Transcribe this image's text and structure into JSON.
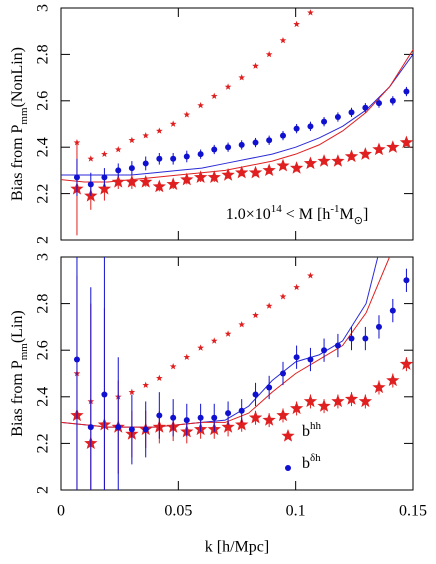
{
  "chart_data": [
    {
      "type": "scatter",
      "ylabel": [
        {
          "t": "Bias from P"
        },
        {
          "sub": "mm"
        },
        {
          "t": "(NonLin)"
        }
      ],
      "annotation": [
        {
          "t": "1.0×10"
        },
        {
          "sup": "14"
        },
        {
          "t": " < M [h"
        },
        {
          "sup": "-1"
        },
        {
          "t": "M"
        },
        {
          "sub": "⊙"
        },
        {
          "t": "]"
        }
      ],
      "xlim": [
        0,
        0.15
      ],
      "xticks": [
        0,
        0.05,
        0.1,
        0.15
      ],
      "xtick_labels": false,
      "ylim": [
        2,
        3
      ],
      "yticks": [
        2,
        2.2,
        2.4,
        2.6,
        2.8,
        3
      ],
      "x": [
        0.0068,
        0.0127,
        0.0185,
        0.0244,
        0.0302,
        0.0361,
        0.0419,
        0.0478,
        0.0536,
        0.0595,
        0.0653,
        0.0712,
        0.077,
        0.0829,
        0.0887,
        0.0946,
        0.1004,
        0.1063,
        0.1121,
        0.118,
        0.1238,
        0.1297,
        0.1355,
        0.1414,
        0.1472
      ],
      "series": [
        {
          "marker": "line",
          "color": "#2a2ad8",
          "x": [
            0,
            0.01,
            0.02,
            0.03,
            0.04,
            0.05,
            0.06,
            0.07,
            0.08,
            0.09,
            0.1,
            0.11,
            0.12,
            0.13,
            0.14,
            0.15
          ],
          "values": [
            2.28,
            2.28,
            2.28,
            2.28,
            2.29,
            2.3,
            2.31,
            2.33,
            2.35,
            2.37,
            2.4,
            2.44,
            2.49,
            2.56,
            2.66,
            2.8
          ]
        },
        {
          "marker": "line",
          "color": "#e02020",
          "x": [
            0,
            0.01,
            0.02,
            0.03,
            0.04,
            0.05,
            0.06,
            0.07,
            0.08,
            0.09,
            0.1,
            0.11,
            0.12,
            0.13,
            0.14,
            0.15
          ],
          "values": [
            2.26,
            2.25,
            2.25,
            2.26,
            2.27,
            2.28,
            2.29,
            2.3,
            2.32,
            2.34,
            2.37,
            2.41,
            2.47,
            2.55,
            2.66,
            2.82
          ]
        },
        {
          "marker": "star",
          "size": 3.5,
          "color": "#e02020",
          "values": [
            2.42,
            2.35,
            2.37,
            2.39,
            2.43,
            2.45,
            2.47,
            2.5,
            2.54,
            2.58,
            2.62,
            2.66,
            2.7,
            2.75,
            2.8,
            2.86,
            2.93,
            2.98,
            null,
            null,
            null,
            null,
            null,
            null,
            null
          ]
        },
        {
          "marker": "star",
          "size": 7,
          "color": "#e02020",
          "values": [
            2.22,
            2.19,
            2.22,
            2.25,
            2.25,
            2.25,
            2.23,
            2.24,
            2.26,
            2.27,
            2.27,
            2.28,
            2.29,
            2.29,
            2.3,
            2.32,
            2.31,
            2.33,
            2.34,
            2.34,
            2.36,
            2.37,
            2.39,
            2.4,
            2.42
          ],
          "errors": [
            0.2,
            0.06,
            0.05,
            0.03,
            0.03,
            0.02,
            0.02,
            0.02,
            0.02,
            0.02,
            0.02,
            0.015,
            0.015,
            0.015,
            0.015,
            0.015,
            0.015,
            0.015,
            0.015,
            0.015,
            0.015,
            0.015,
            0.015,
            0.015,
            0.015
          ]
        },
        {
          "marker": "circle",
          "size": 3,
          "color": "#1010d0",
          "values": [
            2.27,
            2.24,
            2.27,
            2.3,
            2.31,
            2.33,
            2.35,
            2.35,
            2.36,
            2.37,
            2.39,
            2.4,
            2.41,
            2.42,
            2.43,
            2.45,
            2.48,
            2.49,
            2.51,
            2.53,
            2.55,
            2.57,
            2.59,
            2.6,
            2.64
          ],
          "errors": [
            0.08,
            0.05,
            0.04,
            0.03,
            0.03,
            0.03,
            0.025,
            0.025,
            0.025,
            0.02,
            0.02,
            0.02,
            0.02,
            0.02,
            0.02,
            0.02,
            0.02,
            0.02,
            0.02,
            0.02,
            0.02,
            0.02,
            0.02,
            0.02,
            0.02
          ]
        }
      ]
    },
    {
      "type": "scatter",
      "ylabel": [
        {
          "t": "Bias from P"
        },
        {
          "sub": "mm"
        },
        {
          "t": "(Lin)"
        }
      ],
      "xlabel": "k [h/Mpc]",
      "xlim": [
        0,
        0.15
      ],
      "xticks": [
        0,
        0.05,
        0.1,
        0.15
      ],
      "ylim": [
        2,
        3
      ],
      "yticks": [
        2,
        2.2,
        2.4,
        2.6,
        2.8,
        3
      ],
      "legend": "lower right",
      "x": [
        0.0068,
        0.0127,
        0.0185,
        0.0244,
        0.0302,
        0.0361,
        0.0419,
        0.0478,
        0.0536,
        0.0595,
        0.0653,
        0.0712,
        0.077,
        0.0829,
        0.0887,
        0.0946,
        0.1004,
        0.1063,
        0.1121,
        0.118,
        0.1238,
        0.1297,
        0.1355,
        0.1414,
        0.1472
      ],
      "series": [
        {
          "marker": "line",
          "color": "#2a2ad8",
          "x": [
            0,
            0.01,
            0.02,
            0.03,
            0.04,
            0.05,
            0.06,
            0.07,
            0.08,
            0.09,
            0.1,
            0.11,
            0.12,
            0.13,
            0.135
          ],
          "values": [
            2.29,
            2.28,
            2.27,
            2.27,
            2.27,
            2.28,
            2.29,
            2.3,
            2.36,
            2.47,
            2.55,
            2.58,
            2.64,
            2.8,
            3.0
          ]
        },
        {
          "marker": "line",
          "color": "#e02020",
          "x": [
            0,
            0.01,
            0.02,
            0.03,
            0.04,
            0.05,
            0.06,
            0.07,
            0.08,
            0.09,
            0.1,
            0.11,
            0.12,
            0.13,
            0.14
          ],
          "values": [
            2.29,
            2.28,
            2.27,
            2.27,
            2.27,
            2.28,
            2.29,
            2.29,
            2.33,
            2.42,
            2.5,
            2.56,
            2.62,
            2.76,
            3.0
          ]
        },
        {
          "marker": "star",
          "size": 3.5,
          "color": "#e02020",
          "values": [
            2.5,
            2.38,
            2.41,
            2.4,
            2.42,
            2.45,
            2.48,
            2.53,
            2.57,
            2.61,
            2.64,
            2.67,
            2.71,
            2.75,
            2.79,
            2.83,
            2.87,
            2.92,
            null,
            null,
            null,
            null,
            null,
            null,
            null
          ]
        },
        {
          "marker": "star",
          "size": 7,
          "color": "#e02020",
          "name": [
            {
              "t": "b"
            },
            {
              "sup": "hh"
            }
          ],
          "values": [
            2.32,
            2.2,
            2.28,
            2.27,
            2.24,
            2.26,
            2.27,
            2.27,
            2.25,
            2.26,
            2.26,
            2.27,
            2.28,
            2.31,
            2.3,
            2.32,
            2.35,
            2.38,
            2.36,
            2.38,
            2.39,
            2.38,
            2.44,
            2.47,
            2.54
          ],
          "errors": [
            0.6,
            0.6,
            0.5,
            0.2,
            0.1,
            0.08,
            0.07,
            0.06,
            0.05,
            0.04,
            0.04,
            0.04,
            0.03,
            0.03,
            0.03,
            0.03,
            0.03,
            0.03,
            0.03,
            0.03,
            0.03,
            0.03,
            0.03,
            0.03,
            0.03
          ]
        },
        {
          "marker": "circle",
          "size": 3,
          "color": "#1010d0",
          "name": [
            {
              "t": "b"
            },
            {
              "sup": "δh"
            }
          ],
          "values": [
            2.56,
            2.27,
            2.41,
            2.27,
            2.26,
            2.26,
            2.32,
            2.31,
            2.3,
            2.31,
            2.31,
            2.33,
            2.34,
            2.41,
            2.44,
            2.5,
            2.57,
            2.56,
            2.6,
            2.62,
            2.65,
            2.65,
            2.7,
            2.77,
            2.9
          ],
          "errors": [
            0.6,
            0.6,
            0.6,
            0.3,
            0.15,
            0.12,
            0.1,
            0.08,
            0.07,
            0.06,
            0.06,
            0.05,
            0.05,
            0.05,
            0.05,
            0.05,
            0.05,
            0.05,
            0.05,
            0.05,
            0.05,
            0.05,
            0.05,
            0.05,
            0.05
          ]
        }
      ]
    }
  ]
}
